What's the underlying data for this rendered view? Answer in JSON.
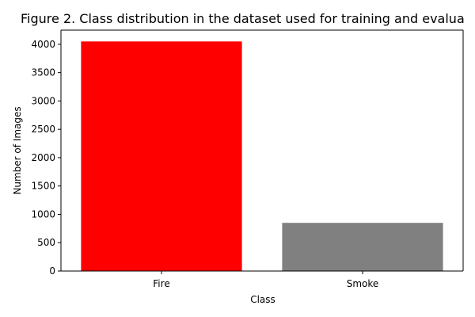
{
  "chart_data": {
    "type": "bar",
    "title": "Figure 2. Class distribution in the dataset used for training and evalua",
    "xlabel": "Class",
    "ylabel": "Number of Images",
    "categories": [
      "Fire",
      "Smoke"
    ],
    "values": [
      4050,
      850
    ],
    "bar_colors": [
      "#ff0000",
      "#808080"
    ],
    "ylim": [
      0,
      4250
    ],
    "yticks": [
      0,
      500,
      1000,
      1500,
      2000,
      2500,
      3000,
      3500,
      4000
    ],
    "grid": false,
    "legend": "none"
  }
}
